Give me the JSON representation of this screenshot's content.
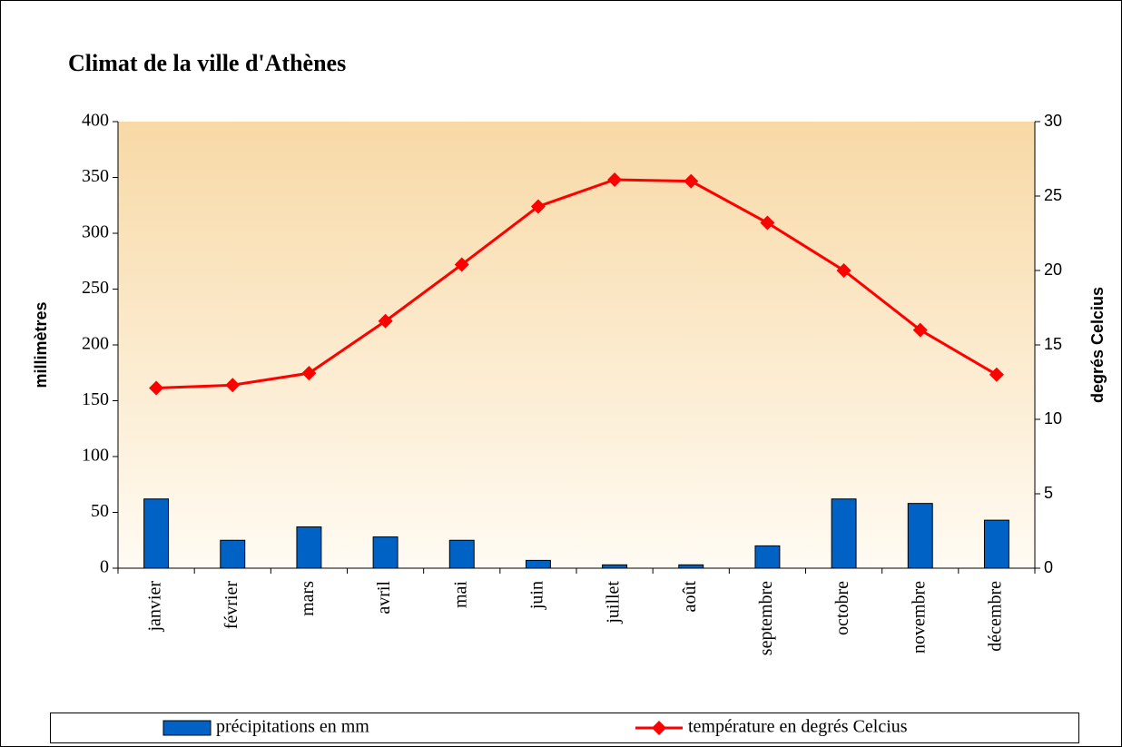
{
  "chart_data": {
    "type": "bar",
    "title": "Climat de la ville d'Athènes",
    "ylabel": "millimètres",
    "y2label": "degrés Celcius",
    "categories": [
      "janvier",
      "février",
      "mars",
      "avril",
      "mai",
      "juin",
      "juillet",
      "août",
      "septembre",
      "octobre",
      "novembre",
      "décembre"
    ],
    "series": [
      {
        "name": "précipitations en mm",
        "type": "bar",
        "color": "#0062c4",
        "values": [
          62,
          25,
          37,
          28,
          25,
          7,
          3,
          3,
          20,
          62,
          58,
          43
        ]
      },
      {
        "name": "température en degrés Celcius",
        "type": "line",
        "axis": "y2",
        "color": "#ff0000",
        "values": [
          12.1,
          12.3,
          13.1,
          16.6,
          20.4,
          24.3,
          26.1,
          26.0,
          23.2,
          20.0,
          16.0,
          13.0
        ]
      }
    ],
    "ylim": [
      0,
      400
    ],
    "yticks": [
      0,
      50,
      100,
      150,
      200,
      250,
      300,
      350,
      400
    ],
    "y2lim": [
      0,
      30
    ],
    "y2ticks": [
      0,
      5,
      10,
      15,
      20,
      25,
      30
    ]
  }
}
